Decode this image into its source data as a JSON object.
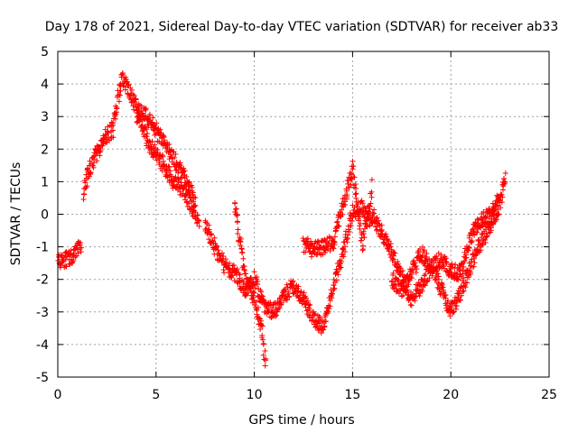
{
  "chart_data": {
    "type": "scatter",
    "title": "Day 178 of 2021, Sidereal Day-to-day VTEC variation (SDTVAR) for receiver ab33",
    "xlabel": "GPS time / hours",
    "ylabel": "SDTVAR / TECUs",
    "xlim": [
      0,
      25
    ],
    "ylim": [
      -5,
      5
    ],
    "xticks": [
      0,
      5,
      10,
      15,
      20,
      25
    ],
    "yticks": [
      -5,
      -4,
      -3,
      -2,
      -1,
      0,
      1,
      2,
      3,
      4,
      5
    ],
    "grid": true,
    "marker": "plus",
    "series": [
      {
        "name": "SDTVAR",
        "color": "#ff0000",
        "band_halfwidth": 0.25,
        "tracks": [
          {
            "x": [
              0.0,
              0.3,
              0.6,
              0.9,
              1.2
            ],
            "y": [
              -1.5,
              -1.4,
              -1.35,
              -1.2,
              -0.9
            ]
          },
          {
            "x": [
              1.3,
              1.6,
              2.0,
              2.4,
              2.8,
              3.0,
              3.3,
              3.6,
              4.0,
              4.5,
              5.0,
              5.5,
              6.0,
              6.5,
              7.0
            ],
            "y": [
              0.7,
              1.4,
              1.9,
              2.4,
              2.6,
              3.4,
              4.2,
              3.8,
              3.3,
              3.0,
              2.6,
              2.1,
              1.6,
              1.1,
              0.3
            ]
          },
          {
            "x": [
              4.0,
              4.6,
              5.2,
              5.8,
              6.5,
              7.2
            ],
            "y": [
              3.1,
              2.2,
              1.7,
              1.1,
              0.6,
              -0.2
            ]
          },
          {
            "x": [
              7.5,
              8.0,
              8.5,
              9.0,
              9.5,
              10.0,
              10.5,
              11.0,
              11.5,
              12.0
            ],
            "y": [
              -0.3,
              -1.0,
              -1.6,
              -1.8,
              -2.3,
              -2.0,
              -2.8,
              -3.0,
              -2.5,
              -2.2
            ]
          },
          {
            "x": [
              9.0,
              9.3,
              9.6,
              10.0,
              10.4,
              10.6
            ],
            "y": [
              0.4,
              -1.0,
              -2.2,
              -2.6,
              -3.6,
              -4.8
            ]
          },
          {
            "x": [
              12.0,
              12.5,
              13.0,
              13.5,
              14.0,
              14.5,
              15.0,
              15.5,
              16.0
            ],
            "y": [
              -2.2,
              -2.6,
              -3.2,
              -3.5,
              -2.3,
              -1.2,
              0.1,
              0.2,
              -0.3
            ]
          },
          {
            "x": [
              12.5,
              13.0,
              14.0,
              15.0,
              15.5,
              16.0
            ],
            "y": [
              -0.9,
              -1.1,
              -0.9,
              1.4,
              -1.0,
              0.9
            ]
          },
          {
            "x": [
              16.0,
              16.5,
              17.0,
              17.5,
              18.0,
              18.5,
              19.0,
              19.5,
              20.0,
              20.5,
              21.0,
              21.5,
              22.0,
              22.5,
              22.8
            ],
            "y": [
              0.0,
              -0.6,
              -1.2,
              -1.9,
              -2.6,
              -2.2,
              -1.6,
              -2.3,
              -3.0,
              -2.4,
              -1.6,
              -0.9,
              -0.4,
              0.3,
              1.2
            ]
          },
          {
            "x": [
              17.0,
              17.5,
              18.0,
              18.5,
              19.0,
              19.5,
              20.0,
              20.5,
              21.0,
              21.5,
              22.0,
              22.5
            ],
            "y": [
              -2.0,
              -2.3,
              -1.8,
              -1.2,
              -1.6,
              -1.4,
              -1.7,
              -1.8,
              -0.7,
              -0.2,
              0.0,
              0.7
            ]
          }
        ]
      }
    ]
  }
}
